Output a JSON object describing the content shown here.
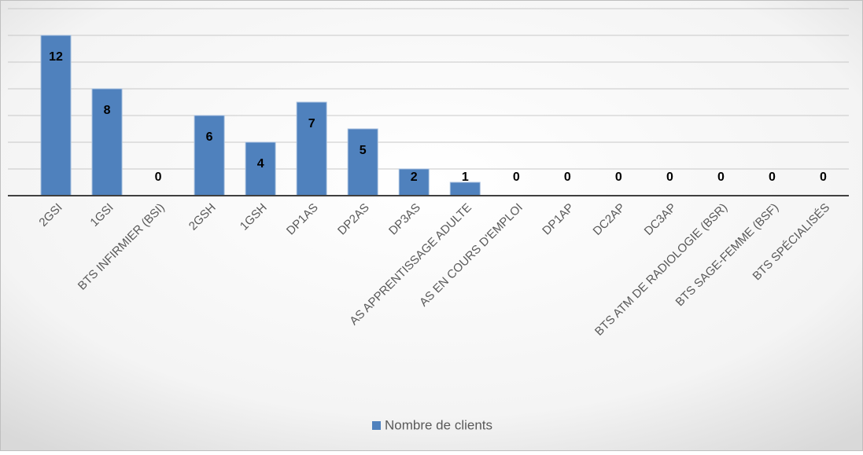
{
  "chart_data": {
    "type": "bar",
    "categories": [
      "2GSI",
      "1GSI",
      "BTS INFIRMIER (BSI)",
      "2GSH",
      "1GSH",
      "DP1AS",
      "DP2AS",
      "DP3AS",
      "AS APPRENTISSAGE ADULTE",
      "AS EN COURS D'EMPLOI",
      "DP1AP",
      "DC2AP",
      "DC3AP",
      "BTS ATM DE RADIOLOGIE (BSR)",
      "BTS SAGE-FEMME (BSF)",
      "BTS SPÉCIALISÉS"
    ],
    "series": [
      {
        "name": "Nombre de clients",
        "color": "#4f81bd",
        "values": [
          12,
          8,
          0,
          6,
          4,
          7,
          5,
          2,
          1,
          0,
          0,
          0,
          0,
          0,
          0,
          0
        ]
      }
    ],
    "ylim": [
      0,
      14
    ],
    "yticks": [
      0,
      2,
      4,
      6,
      8,
      10,
      12,
      14
    ],
    "grid": true,
    "legend": "bottom"
  }
}
